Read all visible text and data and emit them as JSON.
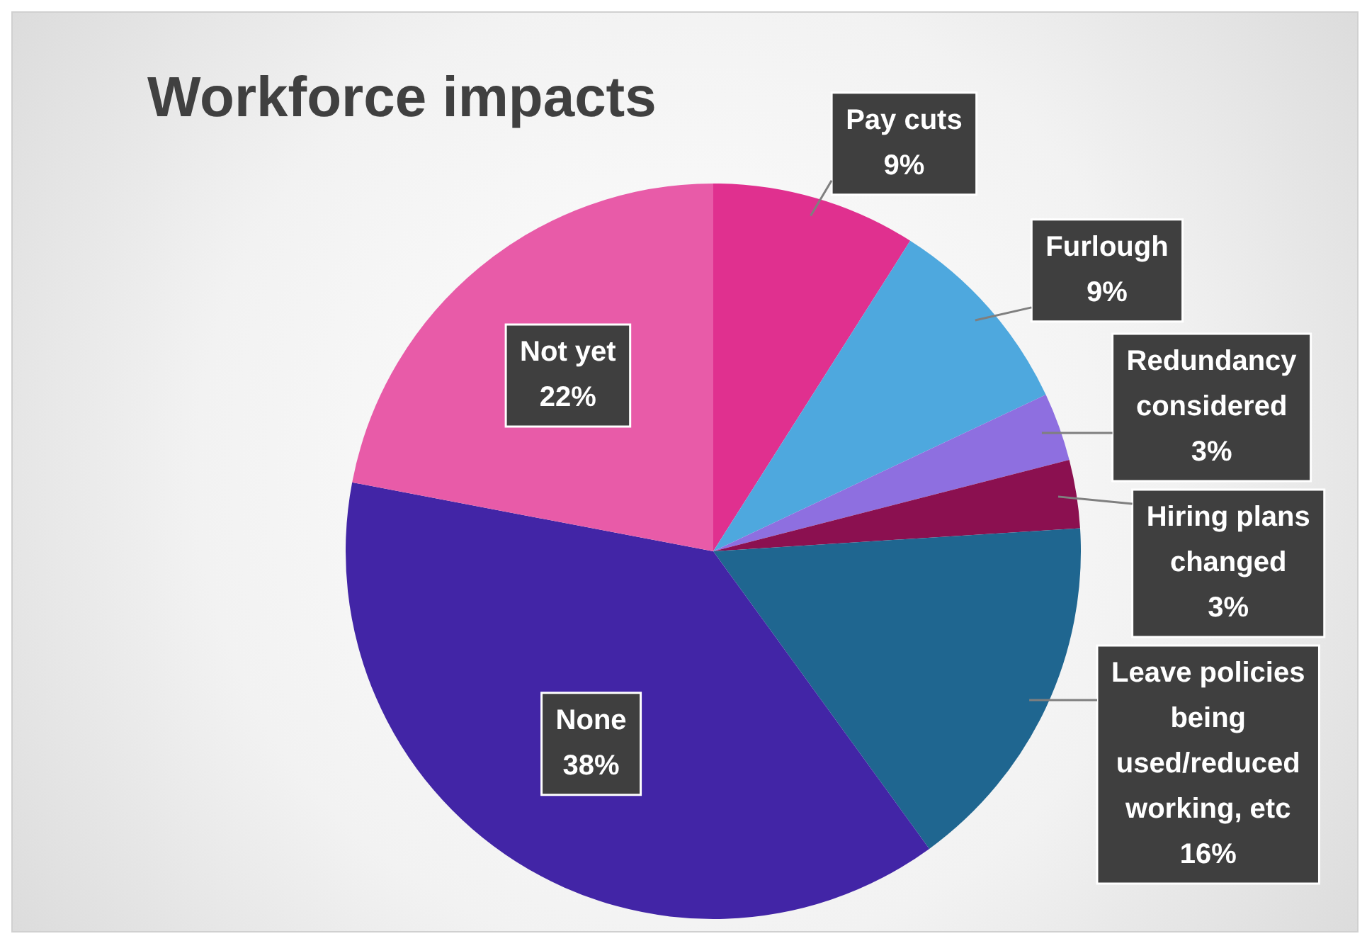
{
  "chart_data": {
    "type": "pie",
    "title": "Workforce impacts",
    "categories": [
      "Pay cuts",
      "Furlough",
      "Redundancy considered",
      "Hiring plans changed",
      "Leave policies being used/reduced working, etc",
      "None",
      "Not yet"
    ],
    "values": [
      9,
      9,
      3,
      3,
      16,
      38,
      22
    ],
    "value_labels": [
      "9%",
      "9%",
      "3%",
      "3%",
      "16%",
      "38%",
      "22%"
    ],
    "colors": [
      "#e0308f",
      "#4ea8de",
      "#8e6fe0",
      "#8b1050",
      "#1f6690",
      "#4225a6",
      "#e85ba8"
    ],
    "legend": false
  }
}
